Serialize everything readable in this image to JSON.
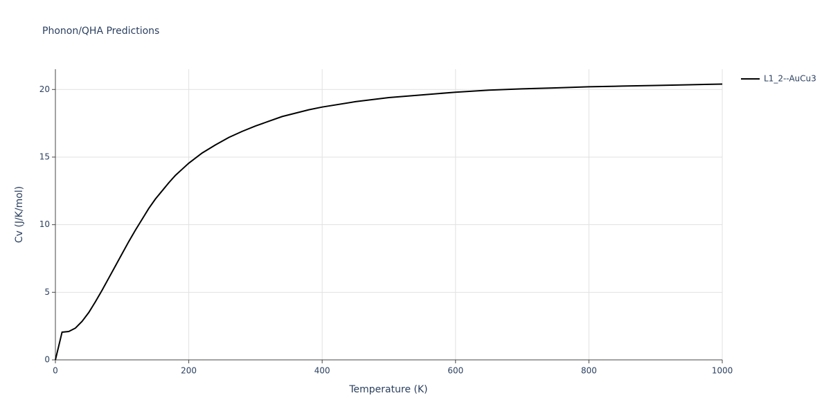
{
  "chart_data": {
    "type": "line",
    "title": "Phonon/QHA Predictions",
    "x_label": "Temperature (K)",
    "y_label": "Cv (J/K/mol)",
    "x": [
      0,
      10,
      20,
      30,
      40,
      50,
      60,
      70,
      80,
      90,
      100,
      110,
      120,
      130,
      140,
      150,
      160,
      170,
      180,
      190,
      200,
      220,
      240,
      260,
      280,
      300,
      320,
      340,
      360,
      380,
      400,
      450,
      500,
      550,
      600,
      650,
      700,
      750,
      800,
      850,
      900,
      950,
      1000
    ],
    "series": [
      {
        "name": "L1_2--AuCu3",
        "color": "#000000",
        "values": [
          0,
          2.05,
          2.1,
          2.35,
          2.85,
          3.5,
          4.3,
          5.15,
          6.05,
          6.95,
          7.85,
          8.75,
          9.6,
          10.4,
          11.2,
          11.9,
          12.5,
          13.1,
          13.65,
          14.1,
          14.55,
          15.3,
          15.9,
          16.45,
          16.9,
          17.3,
          17.65,
          18.0,
          18.25,
          18.5,
          18.7,
          19.1,
          19.4,
          19.6,
          19.8,
          19.95,
          20.05,
          20.12,
          20.2,
          20.25,
          20.3,
          20.35,
          20.4
        ]
      }
    ],
    "xlim": [
      0,
      1000
    ],
    "xticks": [
      0,
      200,
      400,
      600,
      800,
      1000
    ],
    "ylim": [
      0,
      21.5
    ],
    "yticks": [
      0,
      5,
      10,
      15,
      20
    ],
    "grid": true,
    "legend": "right"
  }
}
